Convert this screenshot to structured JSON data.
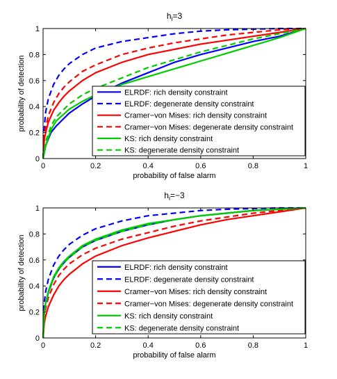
{
  "chart_data": [
    {
      "type": "line",
      "title": "h",
      "title_subscript": "i",
      "title_suffix": "=3",
      "xlabel": "probability of false alarm",
      "ylabel": "probability of detection",
      "xlim": [
        0,
        1
      ],
      "ylim": [
        0,
        1
      ],
      "xticks": [
        "0",
        "0.2",
        "0.4",
        "0.6",
        "0.8",
        "1"
      ],
      "yticks": [
        "0",
        "0.2",
        "0.4",
        "0.6",
        "0.8",
        "1"
      ],
      "legend_position": "bottom-right",
      "series": [
        {
          "name": "ELRDF: rich density constraint",
          "color": "#0000ff",
          "dash": "solid",
          "x": [
            0,
            0.01,
            0.03,
            0.05,
            0.08,
            0.1,
            0.15,
            0.2,
            0.25,
            0.3,
            0.35,
            0.4,
            0.45,
            0.5,
            0.55,
            0.6,
            0.7,
            0.8,
            0.9,
            1.0
          ],
          "y": [
            0,
            0.1,
            0.2,
            0.25,
            0.31,
            0.35,
            0.42,
            0.48,
            0.53,
            0.58,
            0.62,
            0.66,
            0.7,
            0.74,
            0.77,
            0.8,
            0.85,
            0.9,
            0.94,
            1.0
          ]
        },
        {
          "name": "ELRDF: degenerate density constraint",
          "color": "#0000ff",
          "dash": "dashed",
          "x": [
            0,
            0.005,
            0.01,
            0.02,
            0.04,
            0.06,
            0.08,
            0.1,
            0.15,
            0.2,
            0.3,
            0.4,
            0.5,
            0.6,
            0.7,
            0.8,
            0.9,
            1.0
          ],
          "y": [
            0,
            0.25,
            0.36,
            0.46,
            0.57,
            0.64,
            0.69,
            0.73,
            0.8,
            0.85,
            0.9,
            0.93,
            0.96,
            0.98,
            0.99,
            0.995,
            1.0,
            1.0
          ]
        },
        {
          "name": "Cramer−von Mises: rich density constraint",
          "color": "#ff0000",
          "dash": "solid",
          "x": [
            0,
            0.005,
            0.01,
            0.02,
            0.04,
            0.06,
            0.08,
            0.1,
            0.15,
            0.2,
            0.25,
            0.3,
            0.4,
            0.5,
            0.6,
            0.7,
            0.8,
            0.9,
            1.0
          ],
          "y": [
            0,
            0.15,
            0.2,
            0.28,
            0.37,
            0.43,
            0.48,
            0.52,
            0.6,
            0.66,
            0.7,
            0.74,
            0.8,
            0.84,
            0.88,
            0.91,
            0.94,
            0.97,
            1.0
          ]
        },
        {
          "name": "Cramer−von Mises: degenerate density constraint",
          "color": "#ff0000",
          "dash": "dashed",
          "x": [
            0,
            0.005,
            0.01,
            0.02,
            0.04,
            0.06,
            0.08,
            0.1,
            0.15,
            0.2,
            0.3,
            0.4,
            0.5,
            0.6,
            0.7,
            0.8,
            0.9,
            1.0
          ],
          "y": [
            0,
            0.18,
            0.24,
            0.33,
            0.43,
            0.5,
            0.55,
            0.59,
            0.67,
            0.72,
            0.8,
            0.85,
            0.89,
            0.92,
            0.95,
            0.97,
            0.99,
            1.0
          ]
        },
        {
          "name": "KS: rich density constraint",
          "color": "#00cc00",
          "dash": "solid",
          "x": [
            0,
            0.01,
            0.03,
            0.05,
            0.1,
            0.15,
            0.2,
            0.25,
            0.3,
            0.35,
            0.4,
            0.45,
            0.5,
            0.6,
            0.7,
            0.8,
            0.9,
            1.0
          ],
          "y": [
            0,
            0.1,
            0.22,
            0.29,
            0.38,
            0.44,
            0.49,
            0.53,
            0.57,
            0.6,
            0.63,
            0.66,
            0.69,
            0.75,
            0.81,
            0.87,
            0.93,
            1.0
          ]
        },
        {
          "name": "KS: degenerate density constraint",
          "color": "#00cc00",
          "dash": "dashed",
          "x": [
            0,
            0.01,
            0.03,
            0.05,
            0.1,
            0.15,
            0.2,
            0.25,
            0.3,
            0.35,
            0.4,
            0.5,
            0.6,
            0.7,
            0.8,
            0.9,
            1.0
          ],
          "y": [
            0,
            0.13,
            0.25,
            0.32,
            0.42,
            0.49,
            0.54,
            0.58,
            0.62,
            0.66,
            0.7,
            0.76,
            0.82,
            0.87,
            0.92,
            0.96,
            1.0
          ]
        }
      ]
    },
    {
      "type": "line",
      "title": "h",
      "title_subscript": "i",
      "title_suffix": "=−3",
      "xlabel": "probability of false alarm",
      "ylabel": "probability of detection",
      "xlim": [
        0,
        1
      ],
      "ylim": [
        0,
        1
      ],
      "xticks": [
        "0",
        "0.2",
        "0.4",
        "0.6",
        "0.8",
        "1"
      ],
      "yticks": [
        "0",
        "0.2",
        "0.4",
        "0.6",
        "0.8",
        "1"
      ],
      "legend_position": "bottom-right",
      "series": [
        {
          "name": "ELRDF: rich density constraint",
          "color": "#0000ff",
          "dash": "solid",
          "x": [
            0,
            0.005,
            0.01,
            0.02,
            0.04,
            0.06,
            0.08,
            0.1,
            0.15,
            0.2,
            0.3,
            0.4,
            0.5,
            0.6,
            0.7,
            0.8,
            0.9,
            1.0
          ],
          "y": [
            0,
            0.2,
            0.27,
            0.35,
            0.46,
            0.53,
            0.58,
            0.62,
            0.7,
            0.75,
            0.82,
            0.87,
            0.91,
            0.94,
            0.96,
            0.98,
            0.99,
            1.0
          ]
        },
        {
          "name": "ELRDF: degenerate density constraint",
          "color": "#0000ff",
          "dash": "dashed",
          "x": [
            0,
            0.005,
            0.01,
            0.02,
            0.04,
            0.06,
            0.08,
            0.1,
            0.15,
            0.2,
            0.3,
            0.4,
            0.5,
            0.6,
            0.7,
            0.8,
            0.9,
            1.0
          ],
          "y": [
            0,
            0.28,
            0.36,
            0.45,
            0.56,
            0.63,
            0.68,
            0.72,
            0.79,
            0.84,
            0.9,
            0.94,
            0.96,
            0.98,
            0.99,
            0.995,
            1.0,
            1.0
          ]
        },
        {
          "name": "Cramer−von Mises: rich density constraint",
          "color": "#ff0000",
          "dash": "solid",
          "x": [
            0,
            0.005,
            0.01,
            0.02,
            0.04,
            0.06,
            0.08,
            0.1,
            0.15,
            0.2,
            0.3,
            0.4,
            0.5,
            0.6,
            0.7,
            0.8,
            0.9,
            1.0
          ],
          "y": [
            0,
            0.12,
            0.17,
            0.24,
            0.33,
            0.4,
            0.45,
            0.49,
            0.57,
            0.63,
            0.71,
            0.77,
            0.82,
            0.87,
            0.91,
            0.94,
            0.97,
            1.0
          ]
        },
        {
          "name": "Cramer−von Mises: degenerate density constraint",
          "color": "#ff0000",
          "dash": "dashed",
          "x": [
            0,
            0.005,
            0.01,
            0.02,
            0.04,
            0.06,
            0.08,
            0.1,
            0.15,
            0.2,
            0.3,
            0.4,
            0.5,
            0.6,
            0.7,
            0.8,
            0.9,
            1.0
          ],
          "y": [
            0,
            0.17,
            0.23,
            0.31,
            0.41,
            0.48,
            0.53,
            0.57,
            0.64,
            0.69,
            0.76,
            0.81,
            0.86,
            0.9,
            0.93,
            0.96,
            0.98,
            1.0
          ]
        },
        {
          "name": "KS: rich density constraint",
          "color": "#00cc00",
          "dash": "solid",
          "x": [
            0,
            0.005,
            0.01,
            0.02,
            0.04,
            0.06,
            0.08,
            0.1,
            0.15,
            0.2,
            0.3,
            0.4,
            0.5,
            0.6,
            0.7,
            0.8,
            0.9,
            1.0
          ],
          "y": [
            0,
            0.2,
            0.27,
            0.36,
            0.47,
            0.54,
            0.59,
            0.63,
            0.71,
            0.76,
            0.83,
            0.88,
            0.91,
            0.94,
            0.96,
            0.98,
            0.99,
            1.0
          ]
        },
        {
          "name": "KS: degenerate density constraint",
          "color": "#00cc00",
          "dash": "dashed",
          "x": [
            0,
            0.005,
            0.01,
            0.02,
            0.04,
            0.06,
            0.08,
            0.1,
            0.15,
            0.2,
            0.3,
            0.4,
            0.5,
            0.6,
            0.7,
            0.8,
            0.9,
            1.0
          ],
          "y": [
            0,
            0.19,
            0.26,
            0.35,
            0.46,
            0.53,
            0.58,
            0.62,
            0.7,
            0.75,
            0.82,
            0.87,
            0.91,
            0.94,
            0.96,
            0.98,
            0.99,
            1.0
          ]
        }
      ]
    }
  ]
}
